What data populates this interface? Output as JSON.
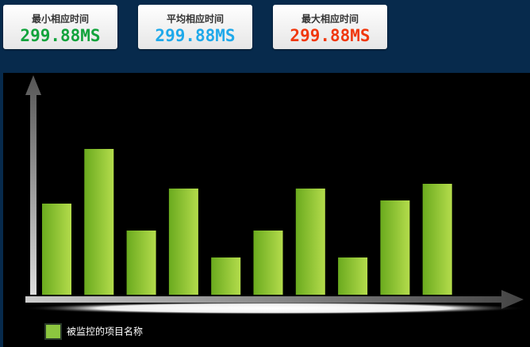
{
  "cards": [
    {
      "title": "最小相应时间",
      "value": "299.88MS",
      "color": "#12a33c"
    },
    {
      "title": "平均相应时间",
      "value": "299.88MS",
      "color": "#1fa9ea"
    },
    {
      "title": "最大相应时间",
      "value": "299.88MS",
      "color": "#f0380e"
    }
  ],
  "chart_data": {
    "type": "bar",
    "categories": [
      null,
      null,
      null,
      null,
      null,
      null,
      null,
      null,
      null,
      null
    ],
    "series": [
      {
        "name": "被监控的项目名称",
        "color": "#8cc63f",
        "values": [
          115,
          184,
          81,
          134,
          47,
          81,
          134,
          47,
          119,
          140
        ]
      }
    ],
    "ylim": [
      0,
      200
    ],
    "legend": "bottom-left"
  }
}
